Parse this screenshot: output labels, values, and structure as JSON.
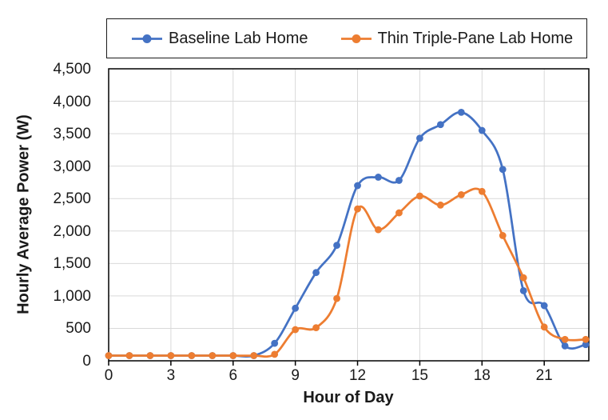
{
  "chart_data": {
    "type": "line",
    "title": "",
    "xlabel": "Hour of Day",
    "ylabel": "Hourly Average Power (W)",
    "x": [
      0,
      1,
      2,
      3,
      4,
      5,
      6,
      7,
      8,
      9,
      10,
      11,
      12,
      13,
      14,
      15,
      16,
      17,
      18,
      19,
      20,
      21,
      22,
      23
    ],
    "series": [
      {
        "name": "Baseline Lab Home",
        "color": "#4472C4",
        "values": [
          80,
          80,
          80,
          80,
          80,
          80,
          80,
          80,
          270,
          810,
          1360,
          1780,
          2700,
          2830,
          2780,
          3430,
          3640,
          3830,
          3550,
          2950,
          1080,
          850,
          230,
          250
        ]
      },
      {
        "name": "Thin Triple-Pane Lab Home",
        "color": "#ED7D31",
        "values": [
          80,
          80,
          80,
          80,
          80,
          80,
          80,
          80,
          100,
          480,
          510,
          960,
          2340,
          2020,
          2280,
          2540,
          2400,
          2560,
          2610,
          1930,
          1280,
          520,
          330,
          330
        ]
      }
    ],
    "xlim": [
      0,
      23.15
    ],
    "ylim": [
      0,
      4500
    ],
    "x_ticks": [
      {
        "value": 0,
        "label": "0"
      },
      {
        "value": 3,
        "label": "3"
      },
      {
        "value": 6,
        "label": "6"
      },
      {
        "value": 9,
        "label": "9"
      },
      {
        "value": 12,
        "label": "12"
      },
      {
        "value": 15,
        "label": "15"
      },
      {
        "value": 18,
        "label": "18"
      },
      {
        "value": 21,
        "label": "21"
      }
    ],
    "y_ticks": [
      {
        "value": 0,
        "label": "0"
      },
      {
        "value": 500,
        "label": "500"
      },
      {
        "value": 1000,
        "label": "1,000"
      },
      {
        "value": 1500,
        "label": "1,500"
      },
      {
        "value": 2000,
        "label": "2,000"
      },
      {
        "value": 2500,
        "label": "2,500"
      },
      {
        "value": 3000,
        "label": "3,000"
      },
      {
        "value": 3500,
        "label": "3,500"
      },
      {
        "value": 4000,
        "label": "4,000"
      },
      {
        "value": 4500,
        "label": "4,500"
      }
    ],
    "grid": true,
    "legend_position": "top",
    "line_style": "smooth",
    "marker": "circle"
  },
  "colors": {
    "gridline": "#D9D9D9",
    "axis": "#000000",
    "plot_border": "#000000",
    "text": "#1A1A1A",
    "background": "#FFFFFF"
  }
}
